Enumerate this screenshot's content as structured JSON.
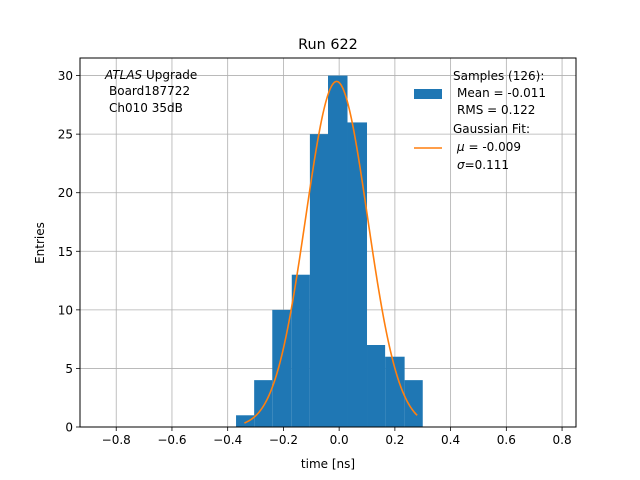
{
  "chart_data": {
    "type": "histogram",
    "title": "Run 622",
    "xlabel": "time [ns]",
    "ylabel": "Entries",
    "xlim": [
      -0.93,
      0.85
    ],
    "ylim": [
      0,
      31.5
    ],
    "grid": true,
    "x_ticks": [
      -0.8,
      -0.6,
      -0.4,
      -0.2,
      0.0,
      0.2,
      0.4,
      0.6,
      0.8
    ],
    "x_tick_labels": [
      "−0.8",
      "−0.6",
      "−0.4",
      "−0.2",
      "0.0",
      "0.2",
      "0.4",
      "0.6",
      "0.8"
    ],
    "y_ticks": [
      0,
      5,
      10,
      15,
      20,
      25,
      30
    ],
    "y_tick_labels": [
      "0",
      "5",
      "10",
      "15",
      "20",
      "25",
      "30"
    ],
    "bins": [
      {
        "x0": -0.37,
        "x1": -0.305,
        "count": 1
      },
      {
        "x0": -0.305,
        "x1": -0.24,
        "count": 4
      },
      {
        "x0": -0.24,
        "x1": -0.17,
        "count": 10
      },
      {
        "x0": -0.17,
        "x1": -0.105,
        "count": 13
      },
      {
        "x0": -0.105,
        "x1": -0.04,
        "count": 25
      },
      {
        "x0": -0.04,
        "x1": 0.03,
        "count": 30
      },
      {
        "x0": 0.03,
        "x1": 0.1,
        "count": 26
      },
      {
        "x0": 0.1,
        "x1": 0.165,
        "count": 7
      },
      {
        "x0": 0.165,
        "x1": 0.235,
        "count": 6
      },
      {
        "x0": 0.235,
        "x1": 0.3,
        "count": 4
      }
    ],
    "fit": {
      "type": "gaussian",
      "amplitude": 29.5,
      "mu": -0.009,
      "sigma": 0.111,
      "x_range": [
        -0.34,
        0.28
      ]
    },
    "colors": {
      "bars": "#1f77b4",
      "fit": "#ff7f0e",
      "grid": "#b0b0b0"
    },
    "annotation": {
      "prefix_italic": "ATLAS",
      "prefix_rest": " Upgrade",
      "line2": "Board187722",
      "line3": "Ch010 35dB"
    },
    "legend": {
      "placement": "top-right",
      "samples": {
        "line1": "Samples (126):",
        "line2": "Mean = -0.011",
        "line3": "RMS = 0.122"
      },
      "fit": {
        "line1": "Gaussian Fit:",
        "mu_symbol": "μ",
        "mu_value": " = -0.009",
        "sigma_symbol": "σ",
        "sigma_value": "=0.111"
      }
    }
  }
}
